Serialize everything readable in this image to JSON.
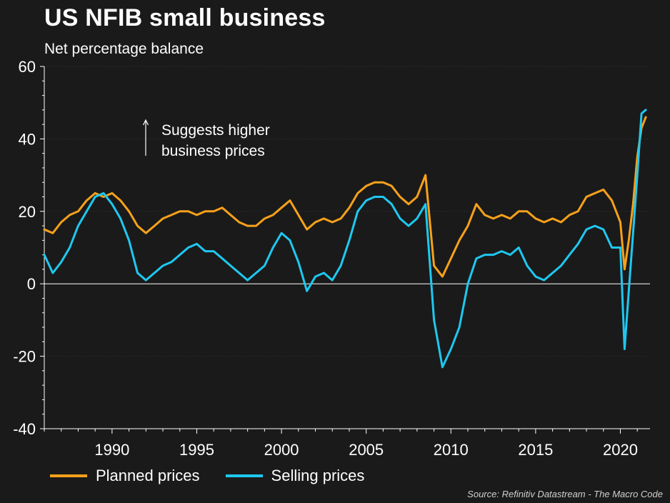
{
  "header": {
    "title": "US NFIB small business",
    "subtitle": "Net percentage balance"
  },
  "annotation": {
    "line1": "Suggests higher",
    "line2": "business prices"
  },
  "legend": {
    "planned_label": "Planned prices",
    "selling_label": "Selling prices"
  },
  "source": "Source: Refinitiv Datastream - The Macro Code",
  "colors": {
    "background": "#1a1a1a",
    "planned": "#f7a11a",
    "selling": "#1ec8f0",
    "axis": "#ffffff",
    "grid": "#3a3a3a"
  },
  "chart_data": {
    "type": "line",
    "title": "US NFIB small business",
    "subtitle": "Net percentage balance",
    "xlabel": "",
    "ylabel": "",
    "xlim": [
      1986.0,
      2021.75
    ],
    "ylim": [
      -40,
      60
    ],
    "yticks": [
      -40,
      -20,
      0,
      20,
      40,
      60
    ],
    "xticks": [
      1990,
      1995,
      2000,
      2005,
      2010,
      2015,
      2020
    ],
    "grid": true,
    "legend_position": "bottom",
    "series": [
      {
        "name": "Planned prices",
        "x": [
          1986.0,
          1986.5,
          1987.0,
          1987.5,
          1988.0,
          1988.5,
          1989.0,
          1989.5,
          1990.0,
          1990.5,
          1991.0,
          1991.5,
          1992.0,
          1992.5,
          1993.0,
          1993.5,
          1994.0,
          1994.5,
          1995.0,
          1995.5,
          1996.0,
          1996.5,
          1997.0,
          1997.5,
          1998.0,
          1998.5,
          1999.0,
          1999.5,
          2000.0,
          2000.5,
          2001.0,
          2001.5,
          2002.0,
          2002.5,
          2003.0,
          2003.5,
          2004.0,
          2004.5,
          2005.0,
          2005.5,
          2006.0,
          2006.5,
          2007.0,
          2007.5,
          2008.0,
          2008.5,
          2009.0,
          2009.5,
          2010.0,
          2010.5,
          2011.0,
          2011.5,
          2012.0,
          2012.5,
          2013.0,
          2013.5,
          2014.0,
          2014.5,
          2015.0,
          2015.5,
          2016.0,
          2016.5,
          2017.0,
          2017.5,
          2018.0,
          2018.5,
          2019.0,
          2019.5,
          2020.0,
          2020.25,
          2020.5,
          2020.75,
          2021.0,
          2021.25,
          2021.5
        ],
        "values": [
          15,
          14,
          17,
          19,
          20,
          23,
          25,
          24,
          25,
          23,
          20,
          16,
          14,
          16,
          18,
          19,
          20,
          20,
          19,
          20,
          20,
          21,
          19,
          17,
          16,
          16,
          18,
          19,
          21,
          23,
          19,
          15,
          17,
          18,
          17,
          18,
          21,
          25,
          27,
          28,
          28,
          27,
          24,
          22,
          24,
          30,
          5,
          2,
          7,
          12,
          16,
          22,
          19,
          18,
          19,
          18,
          20,
          20,
          18,
          17,
          18,
          17,
          19,
          20,
          24,
          25,
          26,
          23,
          17,
          4,
          12,
          22,
          35,
          43,
          46
        ]
      },
      {
        "name": "Selling prices",
        "x": [
          1986.0,
          1986.5,
          1987.0,
          1987.5,
          1988.0,
          1988.5,
          1989.0,
          1989.5,
          1990.0,
          1990.5,
          1991.0,
          1991.5,
          1992.0,
          1992.5,
          1993.0,
          1993.5,
          1994.0,
          1994.5,
          1995.0,
          1995.5,
          1996.0,
          1996.5,
          1997.0,
          1997.5,
          1998.0,
          1998.5,
          1999.0,
          1999.5,
          2000.0,
          2000.5,
          2001.0,
          2001.5,
          2002.0,
          2002.5,
          2003.0,
          2003.5,
          2004.0,
          2004.5,
          2005.0,
          2005.5,
          2006.0,
          2006.5,
          2007.0,
          2007.5,
          2008.0,
          2008.5,
          2009.0,
          2009.5,
          2010.0,
          2010.5,
          2011.0,
          2011.5,
          2012.0,
          2012.5,
          2013.0,
          2013.5,
          2014.0,
          2014.5,
          2015.0,
          2015.5,
          2016.0,
          2016.5,
          2017.0,
          2017.5,
          2018.0,
          2018.5,
          2019.0,
          2019.5,
          2020.0,
          2020.25,
          2020.5,
          2020.75,
          2021.0,
          2021.25,
          2021.5
        ],
        "values": [
          8,
          3,
          6,
          10,
          16,
          20,
          24,
          25,
          22,
          18,
          12,
          3,
          1,
          3,
          5,
          6,
          8,
          10,
          11,
          9,
          9,
          7,
          5,
          3,
          1,
          3,
          5,
          10,
          14,
          12,
          6,
          -2,
          2,
          3,
          1,
          5,
          12,
          20,
          23,
          24,
          24,
          22,
          18,
          16,
          18,
          22,
          -10,
          -23,
          -18,
          -12,
          0,
          7,
          8,
          8,
          9,
          8,
          10,
          5,
          2,
          1,
          3,
          5,
          8,
          11,
          15,
          16,
          15,
          10,
          10,
          -18,
          -2,
          14,
          30,
          47,
          48
        ]
      }
    ]
  }
}
